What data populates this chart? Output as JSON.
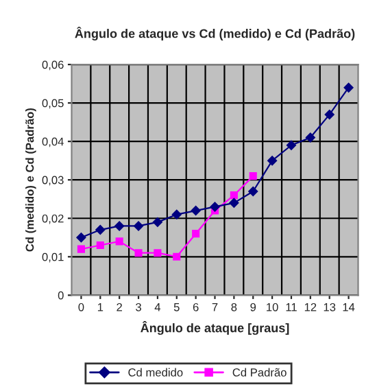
{
  "chart_data": {
    "type": "line",
    "title": "Ângulo de ataque vs Cd (medido) e Cd (Padrão)",
    "xlabel": "Ângulo de ataque [graus]",
    "ylabel": "Cd (medido) e Cd (Padrão)",
    "categories": [
      "0",
      "1",
      "2",
      "3",
      "4",
      "5",
      "6",
      "7",
      "8",
      "9",
      "10",
      "11",
      "12",
      "13",
      "14"
    ],
    "series": [
      {
        "name": "Cd medido",
        "color": "#000080",
        "marker": "diamond",
        "values": [
          0.015,
          0.017,
          0.018,
          0.018,
          0.019,
          0.021,
          0.022,
          0.023,
          0.024,
          0.027,
          0.035,
          0.039,
          0.041,
          0.047,
          0.054
        ]
      },
      {
        "name": "Cd Padrão",
        "color": "#ff00ff",
        "marker": "square",
        "values": [
          0.012,
          0.013,
          0.014,
          0.011,
          0.011,
          0.01,
          0.016,
          0.022,
          0.026,
          0.031,
          null,
          null,
          null,
          null,
          null
        ]
      }
    ],
    "ylim": [
      0,
      0.06
    ],
    "yticks": [
      {
        "value": 0,
        "label": "0"
      },
      {
        "value": 0.01,
        "label": "0,01"
      },
      {
        "value": 0.02,
        "label": "0,02"
      },
      {
        "value": 0.03,
        "label": "0,03"
      },
      {
        "value": 0.04,
        "label": "0,04"
      },
      {
        "value": 0.05,
        "label": "0,05"
      },
      {
        "value": 0.06,
        "label": "0,06"
      }
    ],
    "grid": true,
    "legend": "bottom",
    "line_style": "solid"
  }
}
